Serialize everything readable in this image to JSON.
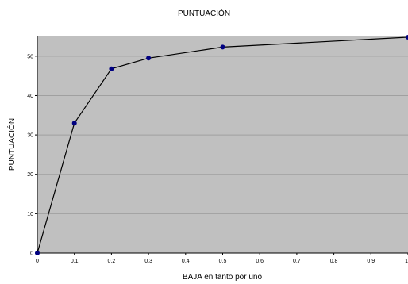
{
  "chart_data": {
    "type": "line",
    "title": "PUNTUACIÓN",
    "xlabel": "BAJA en tanto por uno",
    "ylabel": "PUNTUACIÓN",
    "x": [
      0,
      0.1,
      0.2,
      0.3,
      0.5,
      1.0
    ],
    "series": [
      {
        "values": [
          0,
          33,
          46.8,
          49.5,
          52.3,
          54.8
        ]
      }
    ],
    "xlim": [
      0,
      1
    ],
    "ylim": [
      0,
      55
    ],
    "x_ticks": [
      "0",
      "0.1",
      "0.2",
      "0.3",
      "0.4",
      "0.5",
      "0.6",
      "0.7",
      "0.8",
      "0.9",
      "1"
    ],
    "y_ticks": [
      "0",
      "10",
      "20",
      "30",
      "40",
      "50"
    ],
    "grid": true,
    "colors": {
      "plot_background": "#c0c0c0",
      "line": "#000000",
      "marker": "#000080",
      "gridline": "#a0a0a0"
    }
  }
}
